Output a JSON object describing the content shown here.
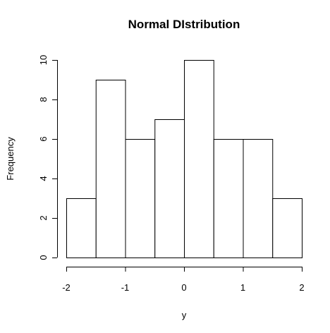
{
  "chart_data": {
    "type": "bar",
    "title": "Normal DIstribution",
    "xlabel": "y",
    "ylabel": "Frequency",
    "bins": [
      {
        "start": -2.0,
        "end": -1.5,
        "count": 3
      },
      {
        "start": -1.5,
        "end": -1.0,
        "count": 9
      },
      {
        "start": -1.0,
        "end": -0.5,
        "count": 6
      },
      {
        "start": -0.5,
        "end": 0.0,
        "count": 7
      },
      {
        "start": 0.0,
        "end": 0.5,
        "count": 10
      },
      {
        "start": 0.5,
        "end": 1.0,
        "count": 6
      },
      {
        "start": 1.0,
        "end": 1.5,
        "count": 6
      },
      {
        "start": 1.5,
        "end": 2.0,
        "count": 3
      }
    ],
    "xlim": [
      -2,
      2
    ],
    "ylim": [
      0,
      10
    ],
    "x_ticks": [
      -2,
      -1,
      0,
      1,
      2
    ],
    "y_ticks": [
      0,
      2,
      4,
      6,
      8,
      10
    ],
    "grid": false,
    "legend": "none"
  }
}
